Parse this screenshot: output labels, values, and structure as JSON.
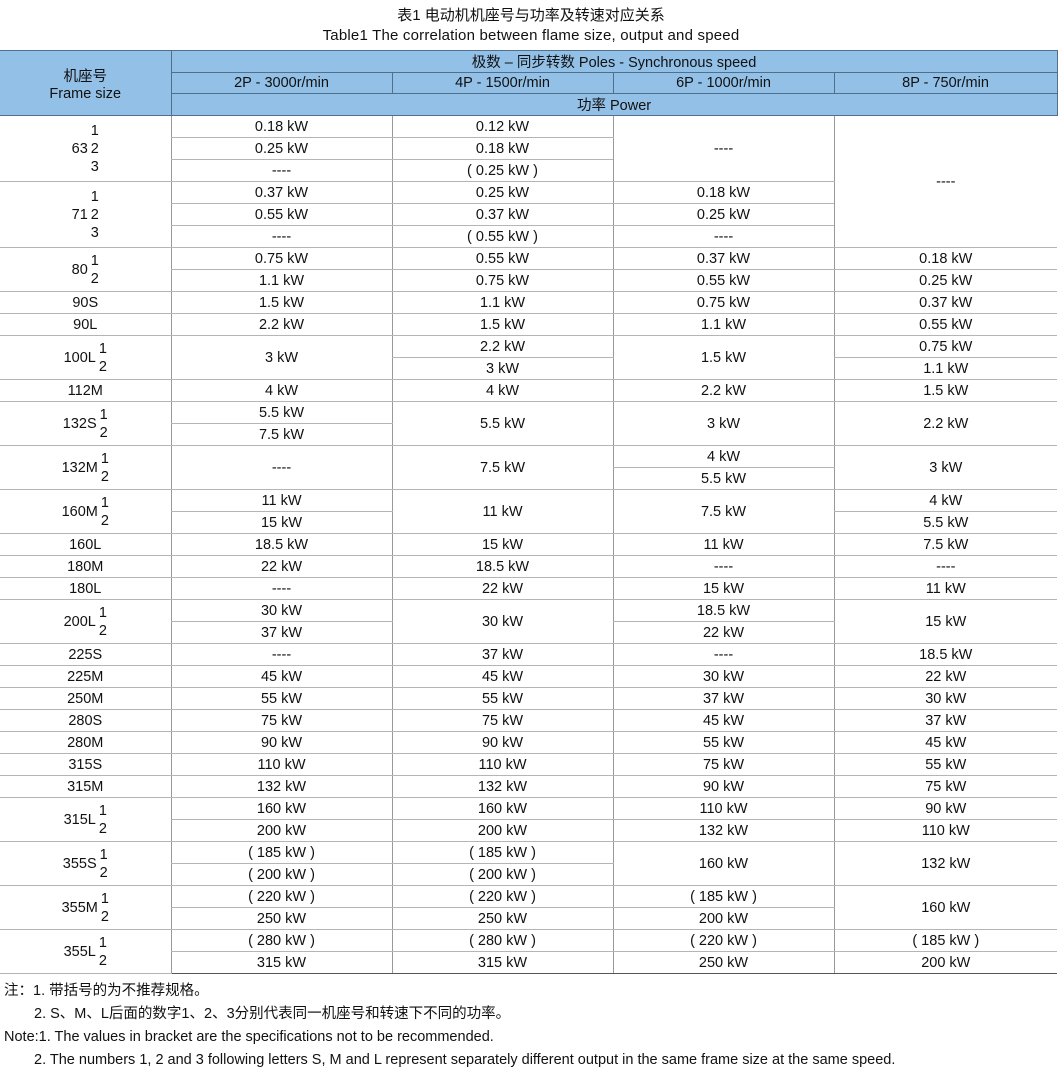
{
  "title": {
    "zh": "表1 电动机机座号与功率及转速对应关系",
    "en": "Table1  The correlation between flame size, output and speed"
  },
  "header": {
    "frame_zh": "机座号",
    "frame_en": "Frame size",
    "poles": "极数 – 同步转数   Poles - Synchronous speed",
    "columns": [
      "2P - 3000r/min",
      "4P - 1500r/min",
      "6P - 1000r/min",
      "8P - 750r/min"
    ],
    "power": "功率  Power"
  },
  "colors": {
    "header_bg": "#93c0e6"
  },
  "groups": [
    {
      "frame": "63",
      "subs": [
        "1",
        "2",
        "3"
      ],
      "cols": [
        [
          "0.18 kW",
          "0.25 kW",
          "----"
        ],
        [
          "0.12 kW",
          "0.18 kW",
          "( 0.25 kW )"
        ],
        [
          {
            "v": "----",
            "span": 3
          }
        ],
        [
          {
            "v": "----",
            "span": 6
          }
        ]
      ]
    },
    {
      "frame": "71",
      "subs": [
        "1",
        "2",
        "3"
      ],
      "cols": [
        [
          "0.37 kW",
          "0.55 kW",
          "----"
        ],
        [
          "0.25 kW",
          "0.37 kW",
          "( 0.55 kW )"
        ],
        [
          "0.18 kW",
          "0.25 kW",
          "----"
        ],
        []
      ]
    },
    {
      "frame": "80",
      "subs": [
        "1",
        "2"
      ],
      "cols": [
        [
          "0.75 kW",
          "1.1 kW"
        ],
        [
          "0.55 kW",
          "0.75 kW"
        ],
        [
          "0.37 kW",
          "0.55 kW"
        ],
        [
          "0.18 kW",
          "0.25 kW"
        ]
      ]
    },
    {
      "frame": "90S",
      "subs": [],
      "cols": [
        [
          "1.5 kW"
        ],
        [
          "1.1 kW"
        ],
        [
          "0.75 kW"
        ],
        [
          "0.37 kW"
        ]
      ]
    },
    {
      "frame": "90L",
      "subs": [],
      "cols": [
        [
          "2.2 kW"
        ],
        [
          "1.5 kW"
        ],
        [
          "1.1 kW"
        ],
        [
          "0.55 kW"
        ]
      ]
    },
    {
      "frame": "100L",
      "subs": [
        "1",
        "2"
      ],
      "cols": [
        [
          {
            "v": "3 kW",
            "span": 2
          }
        ],
        [
          "2.2 kW",
          "3 kW"
        ],
        [
          {
            "v": "1.5 kW",
            "span": 2
          }
        ],
        [
          "0.75 kW",
          "1.1 kW"
        ]
      ]
    },
    {
      "frame": "112M",
      "subs": [],
      "cols": [
        [
          "4 kW"
        ],
        [
          "4 kW"
        ],
        [
          "2.2 kW"
        ],
        [
          "1.5 kW"
        ]
      ]
    },
    {
      "frame": "132S",
      "subs": [
        "1",
        "2"
      ],
      "cols": [
        [
          "5.5 kW",
          "7.5 kW"
        ],
        [
          {
            "v": "5.5 kW",
            "span": 2
          }
        ],
        [
          {
            "v": "3 kW",
            "span": 2
          }
        ],
        [
          {
            "v": "2.2 kW",
            "span": 2
          }
        ]
      ]
    },
    {
      "frame": "132M",
      "subs": [
        "1",
        "2"
      ],
      "cols": [
        [
          {
            "v": "----",
            "span": 2
          }
        ],
        [
          {
            "v": "7.5 kW",
            "span": 2
          }
        ],
        [
          "4 kW",
          "5.5 kW"
        ],
        [
          {
            "v": "3 kW",
            "span": 2
          }
        ]
      ]
    },
    {
      "frame": "160M",
      "subs": [
        "1",
        "2"
      ],
      "cols": [
        [
          "11 kW",
          "15 kW"
        ],
        [
          {
            "v": "11 kW",
            "span": 2
          }
        ],
        [
          {
            "v": "7.5 kW",
            "span": 2
          }
        ],
        [
          "4 kW",
          "5.5 kW"
        ]
      ]
    },
    {
      "frame": "160L",
      "subs": [],
      "cols": [
        [
          "18.5 kW"
        ],
        [
          "15 kW"
        ],
        [
          "11 kW"
        ],
        [
          "7.5 kW"
        ]
      ]
    },
    {
      "frame": "180M",
      "subs": [],
      "cols": [
        [
          "22 kW"
        ],
        [
          "18.5 kW"
        ],
        [
          "----"
        ],
        [
          "----"
        ]
      ]
    },
    {
      "frame": "180L",
      "subs": [],
      "cols": [
        [
          "----"
        ],
        [
          "22 kW"
        ],
        [
          "15 kW"
        ],
        [
          "11 kW"
        ]
      ]
    },
    {
      "frame": "200L",
      "subs": [
        "1",
        "2"
      ],
      "cols": [
        [
          "30 kW",
          "37 kW"
        ],
        [
          {
            "v": "30 kW",
            "span": 2
          }
        ],
        [
          "18.5 kW",
          "22 kW"
        ],
        [
          {
            "v": "15 kW",
            "span": 2
          }
        ]
      ]
    },
    {
      "frame": "225S",
      "subs": [],
      "cols": [
        [
          "----"
        ],
        [
          "37 kW"
        ],
        [
          "----"
        ],
        [
          "18.5 kW"
        ]
      ]
    },
    {
      "frame": "225M",
      "subs": [],
      "cols": [
        [
          "45 kW"
        ],
        [
          "45 kW"
        ],
        [
          "30 kW"
        ],
        [
          "22 kW"
        ]
      ]
    },
    {
      "frame": "250M",
      "subs": [],
      "cols": [
        [
          "55 kW"
        ],
        [
          "55 kW"
        ],
        [
          "37 kW"
        ],
        [
          "30 kW"
        ]
      ]
    },
    {
      "frame": "280S",
      "subs": [],
      "cols": [
        [
          "75 kW"
        ],
        [
          "75 kW"
        ],
        [
          "45 kW"
        ],
        [
          "37 kW"
        ]
      ]
    },
    {
      "frame": "280M",
      "subs": [],
      "cols": [
        [
          "90 kW"
        ],
        [
          "90 kW"
        ],
        [
          "55 kW"
        ],
        [
          "45 kW"
        ]
      ]
    },
    {
      "frame": "315S",
      "subs": [],
      "cols": [
        [
          "110 kW"
        ],
        [
          "110 kW"
        ],
        [
          "75 kW"
        ],
        [
          "55 kW"
        ]
      ]
    },
    {
      "frame": "315M",
      "subs": [],
      "cols": [
        [
          "132 kW"
        ],
        [
          "132 kW"
        ],
        [
          "90 kW"
        ],
        [
          "75 kW"
        ]
      ]
    },
    {
      "frame": "315L",
      "subs": [
        "1",
        "2"
      ],
      "cols": [
        [
          "160 kW",
          "200 kW"
        ],
        [
          "160 kW",
          "200 kW"
        ],
        [
          "110 kW",
          "132 kW"
        ],
        [
          "90 kW",
          "110 kW"
        ]
      ]
    },
    {
      "frame": "355S",
      "subs": [
        "1",
        "2"
      ],
      "cols": [
        [
          "( 185 kW )",
          "( 200 kW )"
        ],
        [
          "( 185 kW )",
          "( 200 kW )"
        ],
        [
          {
            "v": "160 kW",
            "span": 2
          }
        ],
        [
          {
            "v": "132 kW",
            "span": 2
          }
        ]
      ]
    },
    {
      "frame": "355M",
      "subs": [
        "1",
        "2"
      ],
      "cols": [
        [
          "( 220 kW )",
          "250 kW"
        ],
        [
          "( 220 kW )",
          "250 kW"
        ],
        [
          "( 185 kW )",
          "200 kW"
        ],
        [
          {
            "v": "160 kW",
            "span": 2
          }
        ]
      ]
    },
    {
      "frame": "355L",
      "subs": [
        "1",
        "2"
      ],
      "cols": [
        [
          "( 280 kW )",
          "315 kW"
        ],
        [
          "( 280 kW )",
          "315 kW"
        ],
        [
          "( 220 kW )",
          "250 kW"
        ],
        [
          "( 185 kW )",
          "200 kW"
        ]
      ]
    }
  ],
  "notes": [
    "注：1. 带括号的为不推荐规格。",
    "2. S、M、L后面的数字1、2、3分别代表同一机座号和转速下不同的功率。",
    "Note:1. The values in bracket are the specifications not to be recommended.",
    "2. The numbers 1, 2 and 3 following letters S, M and L represent separately different output in the same frame size at the same speed."
  ]
}
